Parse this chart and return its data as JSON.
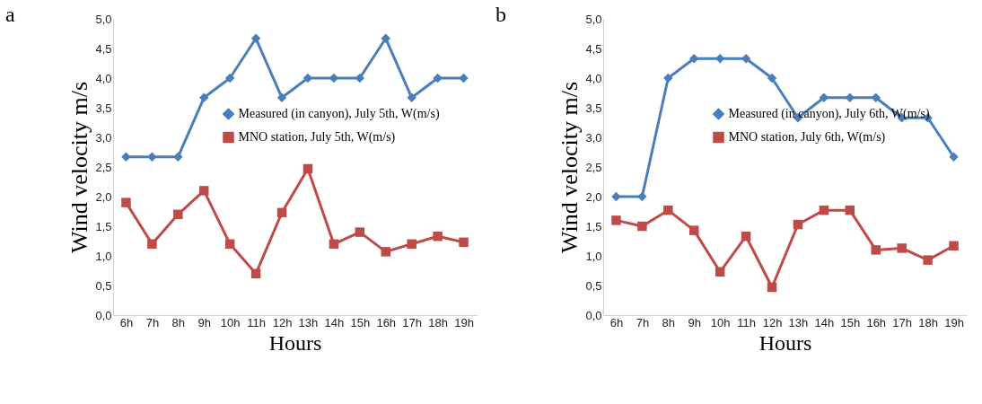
{
  "chart_data": [
    {
      "type": "line",
      "title": "a",
      "xlabel": "Hours",
      "ylabel": "Wind velocity m/s",
      "categories": [
        "6h",
        "7h",
        "8h",
        "9h",
        "10h",
        "11h",
        "12h",
        "13h",
        "14h",
        "15h",
        "16h",
        "17h",
        "18h",
        "19h"
      ],
      "series": [
        {
          "name": "Measured (in canyon), July 5th, W(m/s)",
          "color": "#4a7ebb",
          "marker": "diamond",
          "values": [
            2.67,
            2.67,
            2.67,
            3.67,
            4.0,
            4.67,
            3.67,
            4.0,
            4.0,
            4.0,
            4.67,
            3.67,
            4.0,
            4.0
          ]
        },
        {
          "name": "MNO station, July 5th, W(m/s)",
          "color": "#be4b48",
          "marker": "square",
          "values": [
            1.9,
            1.2,
            1.7,
            2.1,
            1.2,
            0.7,
            1.73,
            2.47,
            1.2,
            1.4,
            1.07,
            1.2,
            1.33,
            1.23
          ]
        }
      ],
      "ylim": [
        0,
        5
      ],
      "yticks": [
        {
          "value": 0,
          "label": "0,0"
        },
        {
          "value": 0.5,
          "label": "0,5"
        },
        {
          "value": 1,
          "label": "1,0"
        },
        {
          "value": 1.5,
          "label": "1,5"
        },
        {
          "value": 2,
          "label": "2,0"
        },
        {
          "value": 2.5,
          "label": "2,5"
        },
        {
          "value": 3,
          "label": "3,0"
        },
        {
          "value": 3.5,
          "label": "3,5"
        },
        {
          "value": 4,
          "label": "4,0"
        },
        {
          "value": 4.5,
          "label": "4,5"
        },
        {
          "value": 5,
          "label": "5,0"
        }
      ],
      "grid": false,
      "legend": "right",
      "line_style": "solid"
    },
    {
      "type": "line",
      "title": "b",
      "xlabel": "Hours",
      "ylabel": "Wind velocity m/s",
      "categories": [
        "6h",
        "7h",
        "8h",
        "9h",
        "10h",
        "11h",
        "12h",
        "13h",
        "14h",
        "15h",
        "16h",
        "17h",
        "18h",
        "19h"
      ],
      "series": [
        {
          "name": "Measured (in canyon), July 6th, W(m/s)",
          "color": "#4a7ebb",
          "marker": "diamond",
          "values": [
            2.0,
            2.0,
            4.0,
            4.33,
            4.33,
            4.33,
            4.0,
            3.33,
            3.67,
            3.67,
            3.67,
            3.33,
            3.33,
            2.67
          ]
        },
        {
          "name": "MNO station, July 6th, W(m/s)",
          "color": "#be4b48",
          "marker": "square",
          "values": [
            1.6,
            1.5,
            1.77,
            1.43,
            0.73,
            1.33,
            0.47,
            1.53,
            1.77,
            1.77,
            1.1,
            1.13,
            0.93,
            1.17
          ]
        }
      ],
      "ylim": [
        0,
        5
      ],
      "yticks": [
        {
          "value": 0,
          "label": "0,0"
        },
        {
          "value": 0.5,
          "label": "0,5"
        },
        {
          "value": 1,
          "label": "1,0"
        },
        {
          "value": 1.5,
          "label": "1,5"
        },
        {
          "value": 2,
          "label": "2,0"
        },
        {
          "value": 2.5,
          "label": "2,5"
        },
        {
          "value": 3,
          "label": "3,0"
        },
        {
          "value": 3.5,
          "label": "3,5"
        },
        {
          "value": 4,
          "label": "4,0"
        },
        {
          "value": 4.5,
          "label": "4,5"
        },
        {
          "value": 5,
          "label": "5,0"
        }
      ],
      "grid": false,
      "legend": "right",
      "line_style": "solid"
    }
  ]
}
